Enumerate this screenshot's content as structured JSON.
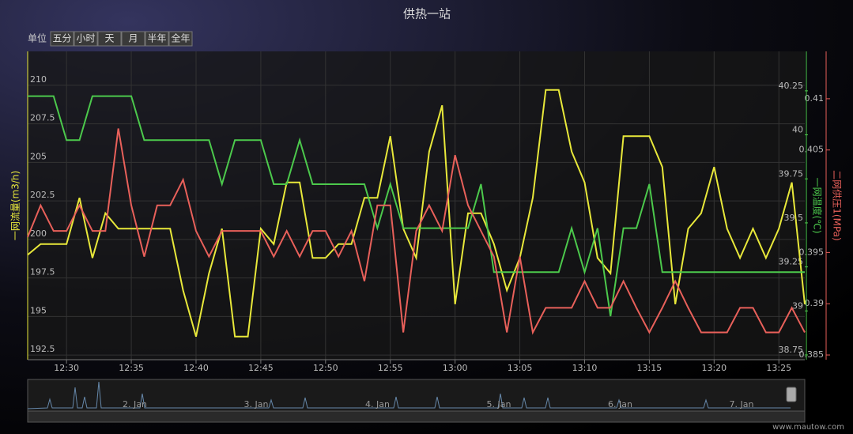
{
  "chart_data": {
    "type": "line",
    "title": "供热一站",
    "range_selector": {
      "label": "单位",
      "buttons": [
        "五分",
        "小时",
        "天",
        "月",
        "半年",
        "全年"
      ]
    },
    "x": [
      "12:27",
      "12:28",
      "12:29",
      "12:30",
      "12:31",
      "12:32",
      "12:33",
      "12:34",
      "12:35",
      "12:36",
      "12:37",
      "12:38",
      "12:39",
      "12:40",
      "12:41",
      "12:42",
      "12:43",
      "12:44",
      "12:45",
      "12:46",
      "12:47",
      "12:48",
      "12:49",
      "12:50",
      "12:51",
      "12:52",
      "12:53",
      "12:54",
      "12:55",
      "12:56",
      "12:57",
      "12:58",
      "12:59",
      "13:00",
      "13:01",
      "13:02",
      "13:03",
      "13:04",
      "13:05",
      "13:06",
      "13:07",
      "13:08",
      "13:09",
      "13:10",
      "13:11",
      "13:12",
      "13:13",
      "13:14",
      "13:15",
      "13:16",
      "13:17",
      "13:18",
      "13:19",
      "13:20",
      "13:21",
      "13:22",
      "13:23",
      "13:24",
      "13:25",
      "13:26",
      "13:27"
    ],
    "xticks": [
      "12:30",
      "12:35",
      "12:40",
      "12:45",
      "12:50",
      "12:55",
      "13:00",
      "13:05",
      "13:10",
      "13:15",
      "13:20",
      "13:25"
    ],
    "y_label": "一网流量(m3/h)",
    "ylim": [
      192.2,
      212.2
    ],
    "yticks": [
      192.5,
      195,
      197.5,
      200,
      202.5,
      205,
      207.5,
      210
    ],
    "y2_label": "一网温度(℃)",
    "y2lim": [
      38.723,
      40.474
    ],
    "y2ticks": [
      38.75,
      39,
      39.25,
      39.5,
      39.75,
      40,
      40.25
    ],
    "y3_label": "二网供压1(MPa)",
    "y3lim": [
      0.38454,
      0.41462
    ],
    "y3ticks": [
      0.385,
      0.39,
      0.395,
      0.405,
      0.41
    ],
    "grid": true,
    "series": [
      {
        "name": "一网流量",
        "color": "#e8e83a",
        "axis": "y",
        "values": [
          199.0,
          199.7,
          199.7,
          199.7,
          202.7,
          198.8,
          201.7,
          200.7,
          200.7,
          200.7,
          200.7,
          200.7,
          196.7,
          193.7,
          197.8,
          200.7,
          193.7,
          193.7,
          200.7,
          199.7,
          203.7,
          203.7,
          198.8,
          198.8,
          199.7,
          199.7,
          202.7,
          202.7,
          206.7,
          200.7,
          198.8,
          205.7,
          208.7,
          195.8,
          201.7,
          201.7,
          199.7,
          196.7,
          198.8,
          202.7,
          209.7,
          209.7,
          205.7,
          203.7,
          198.8,
          197.8,
          206.7,
          206.7,
          206.7,
          204.7,
          195.8,
          200.7,
          201.7,
          204.7,
          200.7,
          198.8,
          200.7,
          198.8,
          200.7,
          203.7,
          195.8
        ]
      },
      {
        "name": "一网温度",
        "color": "#4cc94c",
        "axis": "y2",
        "values": [
          40.22,
          40.22,
          40.22,
          39.97,
          39.97,
          40.22,
          40.22,
          40.22,
          40.22,
          39.97,
          39.97,
          39.97,
          39.97,
          39.97,
          39.97,
          39.72,
          39.97,
          39.97,
          39.97,
          39.72,
          39.72,
          39.97,
          39.72,
          39.72,
          39.72,
          39.72,
          39.72,
          39.47,
          39.72,
          39.47,
          39.47,
          39.47,
          39.47,
          39.47,
          39.47,
          39.72,
          39.22,
          39.22,
          39.22,
          39.22,
          39.22,
          39.22,
          39.47,
          39.22,
          39.47,
          38.97,
          39.47,
          39.47,
          39.72,
          39.22,
          39.22,
          39.22,
          39.22,
          39.22,
          39.22,
          39.22,
          39.22,
          39.22,
          39.22,
          39.22,
          39.22
        ]
      },
      {
        "name": "二网供压1",
        "color": "#e8605a",
        "axis": "y3",
        "values": [
          0.3965,
          0.3996,
          0.3971,
          0.3971,
          0.3996,
          0.3971,
          0.3971,
          0.4071,
          0.3996,
          0.3946,
          0.3996,
          0.3996,
          0.4021,
          0.3971,
          0.3946,
          0.3971,
          0.3971,
          0.3971,
          0.3971,
          0.3946,
          0.3971,
          0.3946,
          0.3971,
          0.3971,
          0.3946,
          0.3971,
          0.3922,
          0.3996,
          0.3996,
          0.3872,
          0.3971,
          0.3996,
          0.3971,
          0.4045,
          0.3996,
          0.3971,
          0.3946,
          0.3872,
          0.3946,
          0.3872,
          0.3896,
          0.3896,
          0.3896,
          0.3922,
          0.3896,
          0.3896,
          0.3922,
          0.3896,
          0.3872,
          0.3896,
          0.3922,
          0.3896,
          0.3872,
          0.3872,
          0.3872,
          0.3896,
          0.3896,
          0.3872,
          0.3872,
          0.3896,
          0.3872
        ]
      }
    ],
    "navigator_labels": [
      "2. Jan",
      "3. Jan",
      "4. Jan",
      "5. Jan",
      "6. Jan",
      "7. Jan"
    ],
    "credit": "www.mautow.com"
  }
}
